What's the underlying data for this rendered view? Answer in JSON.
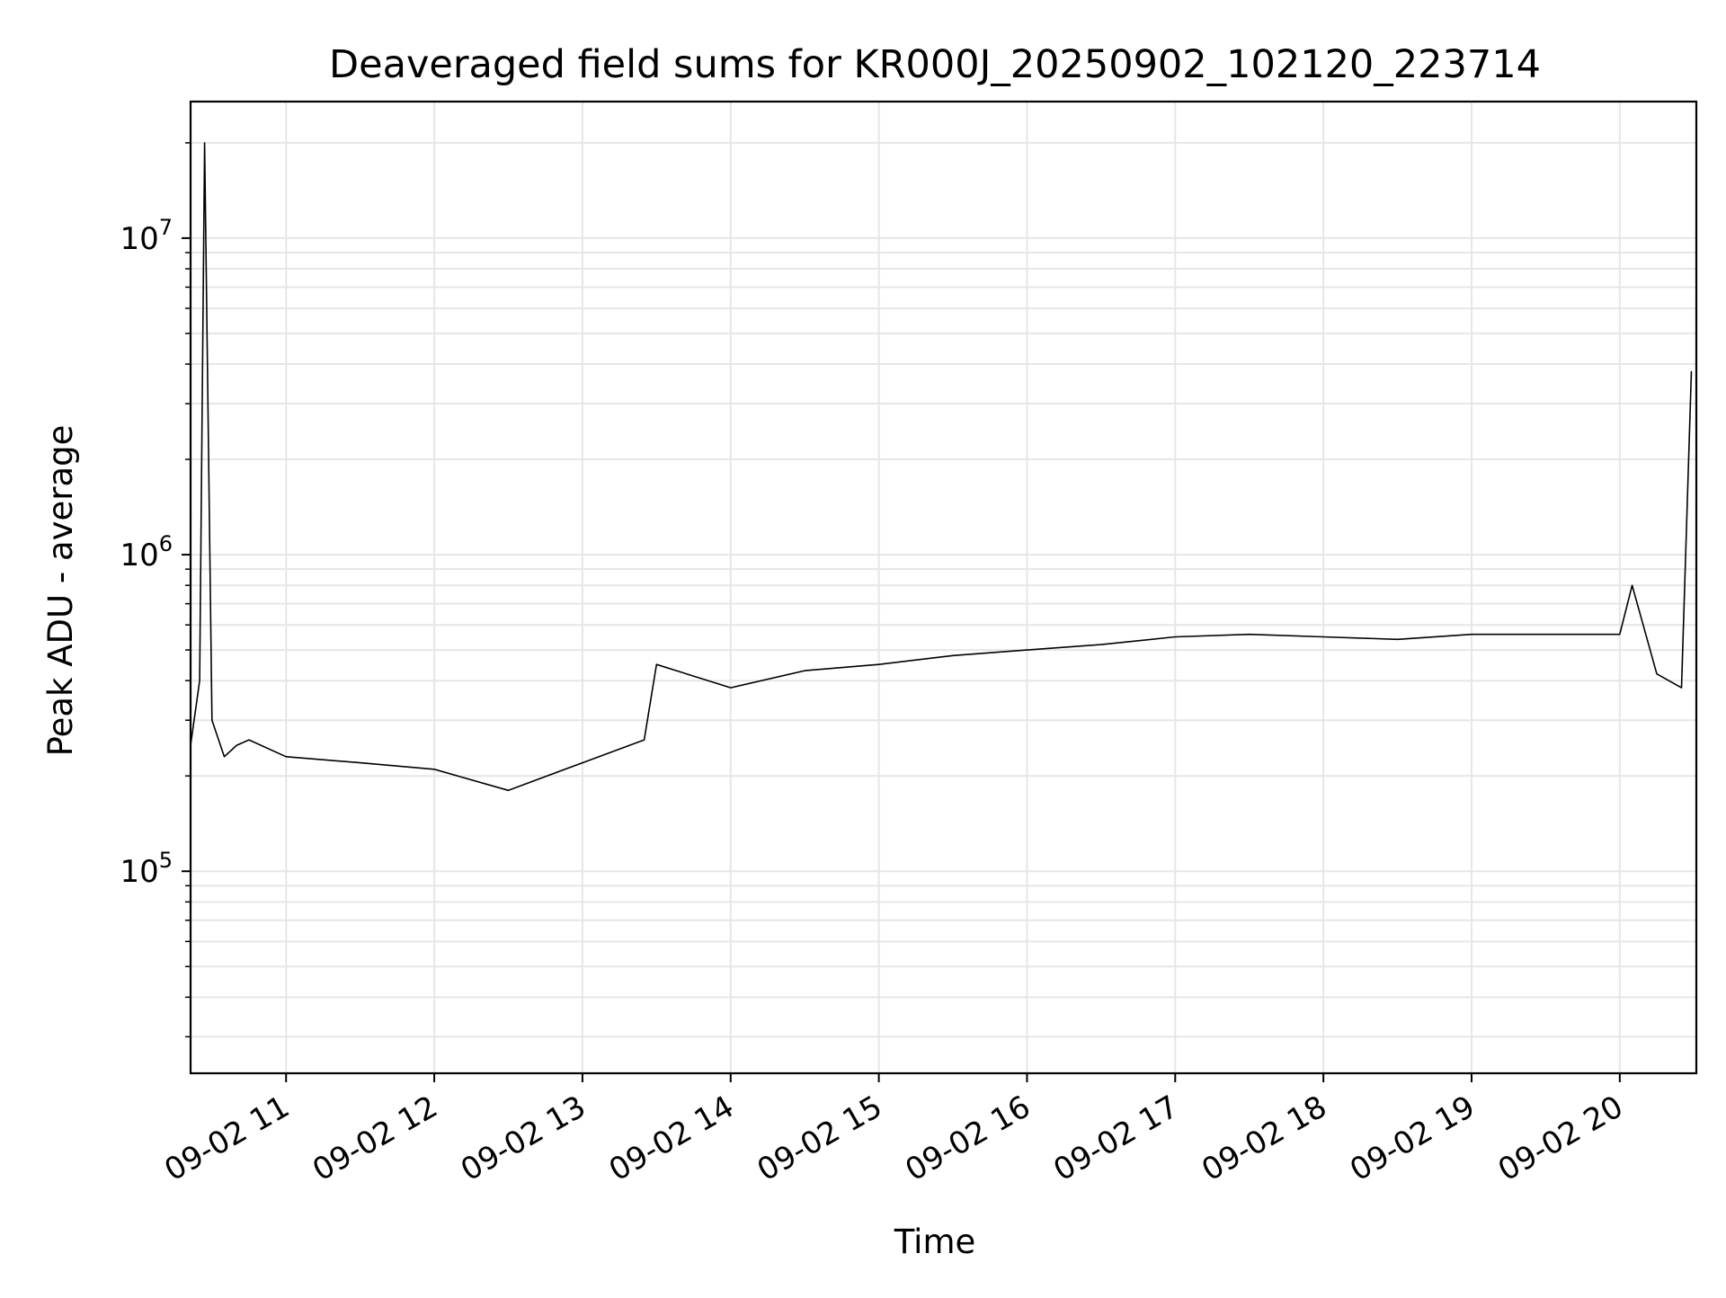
{
  "chart_data": {
    "type": "line",
    "title": "Deaveraged field sums for KR000J_20250902_102120_223714",
    "xlabel": "Time",
    "ylabel": "Peak ADU - average",
    "yscale": "log",
    "x_range": [
      "2025-09-02 10:21:20",
      "2025-09-02 20:31:00"
    ],
    "ylim": [
      23000,
      27000000
    ],
    "grid": true,
    "line_color": "#000000",
    "x_ticks": [
      {
        "label": "09-02 11",
        "hour": 11
      },
      {
        "label": "09-02 12",
        "hour": 12
      },
      {
        "label": "09-02 13",
        "hour": 13
      },
      {
        "label": "09-02 14",
        "hour": 14
      },
      {
        "label": "09-02 15",
        "hour": 15
      },
      {
        "label": "09-02 16",
        "hour": 16
      },
      {
        "label": "09-02 17",
        "hour": 17
      },
      {
        "label": "09-02 18",
        "hour": 18
      },
      {
        "label": "09-02 19",
        "hour": 19
      },
      {
        "label": "09-02 20",
        "hour": 20
      }
    ],
    "y_ticks": [
      {
        "base": "10",
        "exp": "5",
        "value": 100000
      },
      {
        "base": "10",
        "exp": "6",
        "value": 1000000
      },
      {
        "base": "10",
        "exp": "7",
        "value": 10000000
      }
    ],
    "series": [
      {
        "x": [
          "2025-09-02 10:21",
          "2025-09-02 10:25",
          "2025-09-02 10:27",
          "2025-09-02 10:30",
          "2025-09-02 10:35",
          "2025-09-02 10:40",
          "2025-09-02 10:45",
          "2025-09-02 11:00",
          "2025-09-02 11:30",
          "2025-09-02 12:00",
          "2025-09-02 12:30",
          "2025-09-02 13:00",
          "2025-09-02 13:25",
          "2025-09-02 13:30",
          "2025-09-02 14:00",
          "2025-09-02 14:30",
          "2025-09-02 15:00",
          "2025-09-02 15:30",
          "2025-09-02 16:00",
          "2025-09-02 16:30",
          "2025-09-02 17:00",
          "2025-09-02 17:30",
          "2025-09-02 18:00",
          "2025-09-02 18:30",
          "2025-09-02 19:00",
          "2025-09-02 19:30",
          "2025-09-02 20:00",
          "2025-09-02 20:05",
          "2025-09-02 20:15",
          "2025-09-02 20:25",
          "2025-09-02 20:29"
        ],
        "values": [
          250000,
          400000,
          20000000,
          300000,
          230000,
          250000,
          260000,
          230000,
          220000,
          210000,
          180000,
          220000,
          260000,
          450000,
          380000,
          430000,
          450000,
          480000,
          500000,
          520000,
          550000,
          560000,
          550000,
          540000,
          560000,
          560000,
          560000,
          800000,
          420000,
          380000,
          3800000
        ]
      }
    ]
  }
}
